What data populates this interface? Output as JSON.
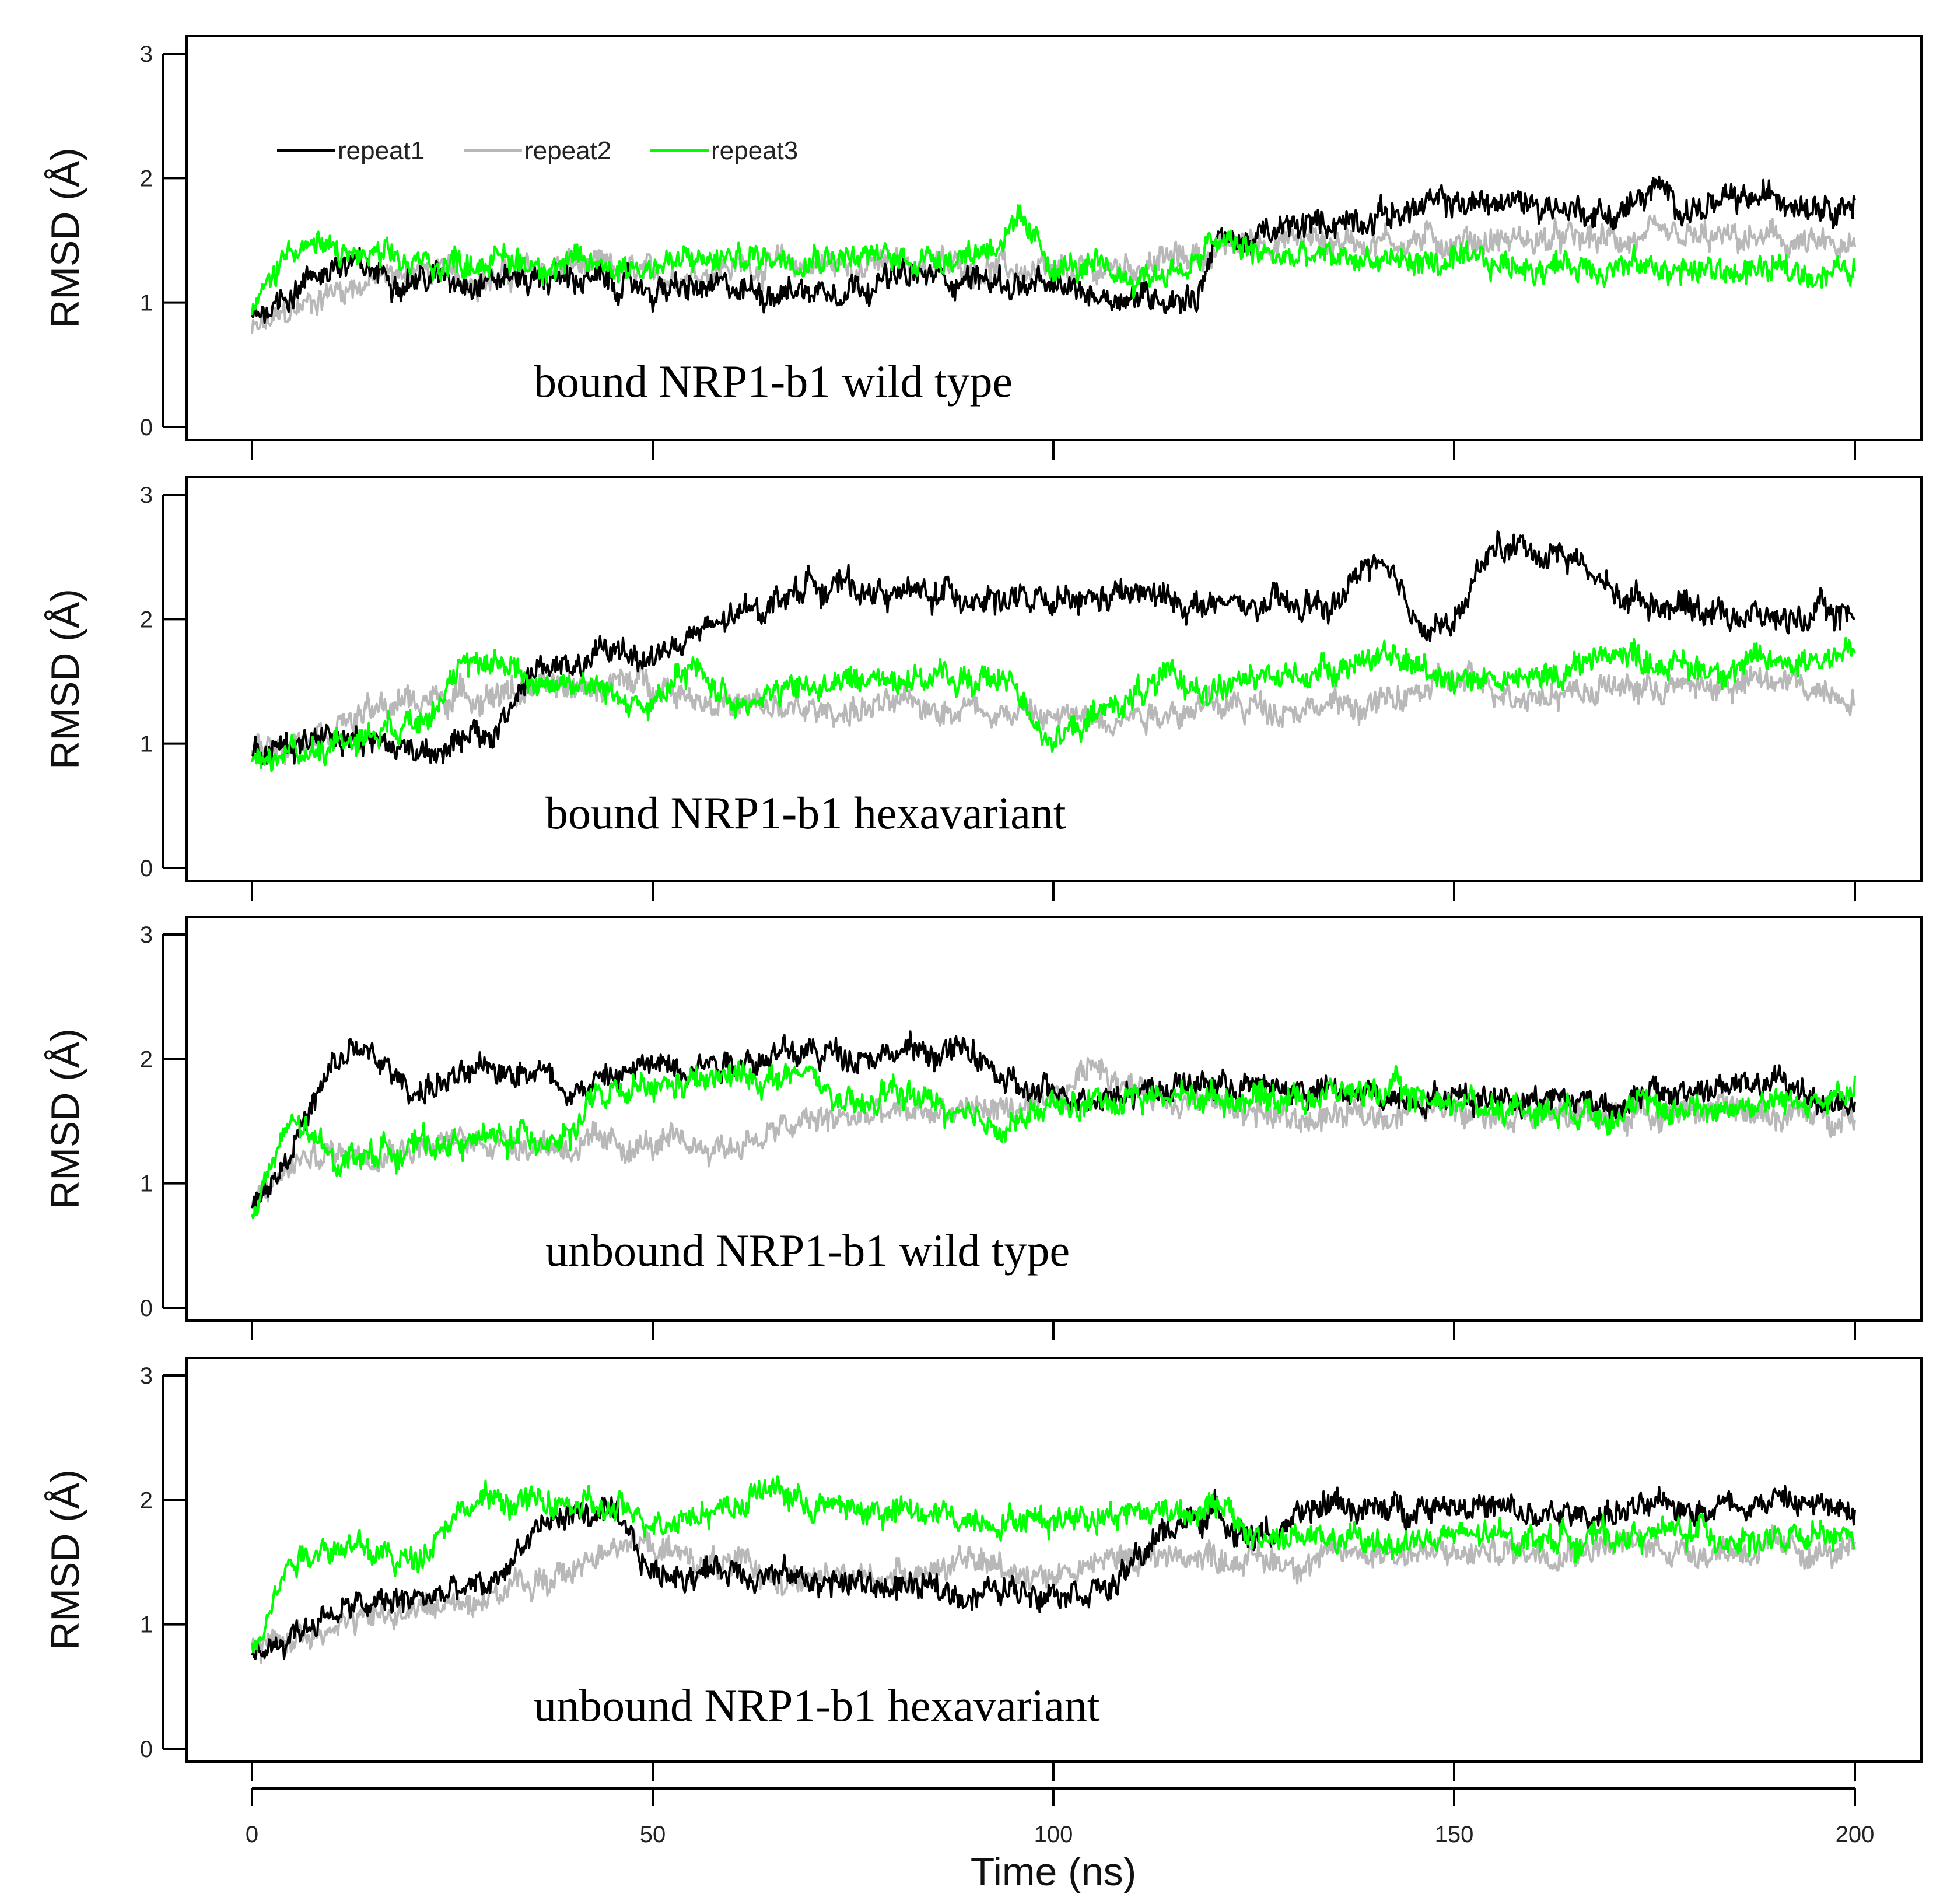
{
  "chart_data": [
    {
      "type": "line",
      "title": "",
      "annotation": "bound NRP1-b1 wild type",
      "xlabel": "",
      "ylabel": "RMSD (Å)",
      "xlim": [
        0,
        200
      ],
      "ylim": [
        0,
        3
      ],
      "yticks": [
        "0",
        "1",
        "2",
        "3"
      ],
      "legend": {
        "position": "top-left",
        "entries": [
          "repeat1",
          "repeat2",
          "repeat3"
        ]
      },
      "series": [
        {
          "name": "repeat1",
          "color": "#000000",
          "x": [
            0,
            10,
            20,
            30,
            40,
            50,
            60,
            70,
            80,
            90,
            100,
            110,
            118,
            120,
            125,
            130,
            140,
            150,
            160,
            170,
            175,
            180,
            190,
            200
          ],
          "y": [
            0.9,
            1.3,
            1.2,
            1.2,
            1.2,
            1.1,
            1.1,
            1.1,
            1.2,
            1.2,
            1.1,
            1.05,
            1.05,
            1.5,
            1.5,
            1.6,
            1.7,
            1.8,
            1.8,
            1.7,
            1.9,
            1.75,
            1.85,
            1.8
          ]
        },
        {
          "name": "repeat2",
          "color": "#b8b8b8",
          "x": [
            0,
            10,
            20,
            30,
            40,
            50,
            60,
            70,
            80,
            90,
            100,
            110,
            120,
            125,
            130,
            140,
            150,
            160,
            170,
            180,
            190,
            200
          ],
          "y": [
            0.75,
            1.1,
            1.25,
            1.2,
            1.3,
            1.2,
            1.3,
            1.3,
            1.3,
            1.3,
            1.2,
            1.3,
            1.4,
            1.5,
            1.5,
            1.5,
            1.5,
            1.5,
            1.5,
            1.5,
            1.5,
            1.4
          ]
        },
        {
          "name": "repeat3",
          "color": "#00ff00",
          "x": [
            0,
            5,
            10,
            20,
            30,
            40,
            50,
            60,
            70,
            80,
            90,
            96,
            100,
            110,
            118,
            120,
            125,
            130,
            140,
            150,
            160,
            170,
            180,
            190,
            200
          ],
          "y": [
            0.9,
            1.5,
            1.4,
            1.3,
            1.35,
            1.3,
            1.3,
            1.35,
            1.4,
            1.35,
            1.4,
            1.6,
            1.3,
            1.2,
            1.3,
            1.5,
            1.4,
            1.35,
            1.35,
            1.3,
            1.3,
            1.3,
            1.25,
            1.25,
            1.25
          ]
        }
      ]
    },
    {
      "type": "line",
      "title": "",
      "annotation": "bound NRP1-b1 hexavariant",
      "xlabel": "",
      "ylabel": "RMSD (Å)",
      "xlim": [
        0,
        200
      ],
      "ylim": [
        0,
        3
      ],
      "yticks": [
        "0",
        "1",
        "2",
        "3"
      ],
      "series": [
        {
          "name": "repeat1",
          "color": "#000000",
          "x": [
            0,
            10,
            20,
            30,
            35,
            40,
            45,
            50,
            60,
            70,
            80,
            90,
            100,
            110,
            120,
            130,
            135,
            140,
            145,
            150,
            155,
            160,
            165,
            170,
            180,
            190,
            200
          ],
          "y": [
            0.9,
            1.1,
            0.95,
            1.05,
            1.6,
            1.6,
            1.75,
            1.7,
            2.0,
            2.3,
            2.2,
            2.2,
            2.1,
            2.2,
            2.1,
            2.1,
            2.1,
            2.5,
            2.0,
            1.95,
            2.6,
            2.55,
            2.5,
            2.2,
            2.1,
            2.0,
            2.05
          ]
        },
        {
          "name": "repeat2",
          "color": "#b8b8b8",
          "x": [
            0,
            10,
            20,
            30,
            40,
            50,
            60,
            70,
            80,
            90,
            100,
            110,
            120,
            130,
            140,
            150,
            160,
            170,
            180,
            190,
            200
          ],
          "y": [
            0.95,
            1.15,
            1.35,
            1.4,
            1.45,
            1.5,
            1.3,
            1.25,
            1.3,
            1.3,
            1.2,
            1.25,
            1.3,
            1.3,
            1.3,
            1.5,
            1.4,
            1.45,
            1.45,
            1.5,
            1.4
          ]
        },
        {
          "name": "repeat3",
          "color": "#00ff00",
          "x": [
            0,
            10,
            20,
            25,
            30,
            35,
            40,
            50,
            55,
            60,
            70,
            80,
            90,
            95,
            100,
            105,
            110,
            115,
            120,
            130,
            140,
            150,
            160,
            170,
            180,
            190,
            200
          ],
          "y": [
            0.85,
            1.0,
            1.2,
            1.5,
            1.7,
            1.5,
            1.5,
            1.3,
            1.6,
            1.35,
            1.45,
            1.55,
            1.5,
            1.5,
            1.0,
            1.2,
            1.4,
            1.5,
            1.45,
            1.55,
            1.7,
            1.55,
            1.5,
            1.75,
            1.6,
            1.65,
            1.75
          ]
        }
      ]
    },
    {
      "type": "line",
      "title": "",
      "annotation": "unbound NRP1-b1 wild type",
      "xlabel": "",
      "ylabel": "RMSD (Å)",
      "xlim": [
        0,
        200
      ],
      "ylim": [
        0,
        3
      ],
      "yticks": [
        "0",
        "1",
        "2",
        "3"
      ],
      "series": [
        {
          "name": "repeat1",
          "color": "#000000",
          "x": [
            0,
            5,
            10,
            13,
            20,
            30,
            35,
            40,
            45,
            50,
            60,
            70,
            80,
            90,
            95,
            100,
            110,
            120,
            130,
            140,
            150,
            160,
            170,
            180,
            190,
            200
          ],
          "y": [
            0.8,
            1.3,
            1.9,
            2.1,
            1.75,
            1.9,
            1.95,
            1.75,
            1.85,
            1.95,
            2.0,
            2.05,
            2.05,
            2.05,
            1.75,
            1.7,
            1.75,
            1.8,
            1.75,
            1.7,
            1.7,
            1.7,
            1.65,
            1.75,
            1.8,
            1.6
          ]
        },
        {
          "name": "repeat2",
          "color": "#b8b8b8",
          "x": [
            0,
            5,
            10,
            20,
            30,
            40,
            50,
            60,
            70,
            80,
            90,
            100,
            105,
            110,
            120,
            130,
            140,
            150,
            160,
            170,
            180,
            190,
            200
          ],
          "y": [
            0.8,
            1.15,
            1.25,
            1.3,
            1.35,
            1.3,
            1.3,
            1.3,
            1.5,
            1.55,
            1.6,
            1.6,
            2.0,
            1.75,
            1.65,
            1.5,
            1.55,
            1.65,
            1.55,
            1.55,
            1.6,
            1.55,
            1.55
          ]
        },
        {
          "name": "repeat3",
          "color": "#00ff00",
          "x": [
            0,
            5,
            10,
            20,
            30,
            40,
            42,
            50,
            60,
            70,
            75,
            80,
            85,
            90,
            95,
            100,
            110,
            120,
            130,
            140,
            150,
            160,
            170,
            180,
            190,
            200
          ],
          "y": [
            0.75,
            1.5,
            1.2,
            1.3,
            1.35,
            1.4,
            1.65,
            1.75,
            1.85,
            1.85,
            1.55,
            1.75,
            1.65,
            1.45,
            1.5,
            1.6,
            1.7,
            1.7,
            1.7,
            1.75,
            1.65,
            1.6,
            1.6,
            1.6,
            1.65,
            1.7
          ]
        }
      ]
    },
    {
      "type": "line",
      "title": "",
      "annotation": "unbound NRP1-b1 hexavariant",
      "xlabel": "Time (ns)",
      "ylabel": "RMSD (Å)",
      "xlim": [
        0,
        200
      ],
      "ylim": [
        0,
        3
      ],
      "xticks": [
        "0",
        "50",
        "100",
        "150",
        "200"
      ],
      "yticks": [
        "0",
        "1",
        "2",
        "3"
      ],
      "series": [
        {
          "name": "repeat1",
          "color": "#000000",
          "x": [
            0,
            10,
            20,
            30,
            35,
            40,
            45,
            50,
            60,
            70,
            80,
            90,
            100,
            108,
            110,
            115,
            120,
            125,
            130,
            135,
            140,
            150,
            160,
            170,
            180,
            190,
            200
          ],
          "y": [
            0.75,
            1.1,
            1.2,
            1.3,
            1.75,
            1.9,
            1.85,
            1.4,
            1.45,
            1.35,
            1.3,
            1.25,
            1.3,
            1.3,
            1.5,
            1.8,
            1.9,
            1.7,
            1.8,
            2.0,
            1.9,
            2.0,
            1.85,
            1.9,
            1.95,
            2.0,
            1.9
          ]
        },
        {
          "name": "repeat2",
          "color": "#b8b8b8",
          "x": [
            0,
            10,
            20,
            30,
            40,
            45,
            50,
            60,
            70,
            80,
            90,
            100,
            110,
            120,
            130,
            140,
            150,
            160,
            170,
            180,
            190,
            200
          ],
          "y": [
            0.8,
            1.0,
            1.1,
            1.25,
            1.4,
            1.7,
            1.6,
            1.45,
            1.35,
            1.4,
            1.5,
            1.4,
            1.55,
            1.55,
            1.5,
            1.6,
            1.55,
            1.6,
            1.65,
            1.6,
            1.6,
            1.55
          ]
        },
        {
          "name": "repeat3",
          "color": "#00ff00",
          "x": [
            0,
            5,
            10,
            20,
            25,
            30,
            40,
            50,
            60,
            65,
            70,
            80,
            90,
            100,
            105,
            110,
            120,
            125,
            130,
            140,
            150,
            160,
            170,
            180,
            190,
            200
          ],
          "y": [
            0.85,
            1.55,
            1.65,
            1.5,
            1.9,
            2.0,
            1.95,
            1.85,
            1.95,
            2.1,
            1.95,
            1.9,
            1.85,
            1.85,
            1.9,
            1.9,
            1.95,
            1.7,
            1.7,
            1.65,
            1.7,
            1.7,
            1.7,
            1.75,
            1.65,
            1.7
          ]
        }
      ]
    }
  ]
}
